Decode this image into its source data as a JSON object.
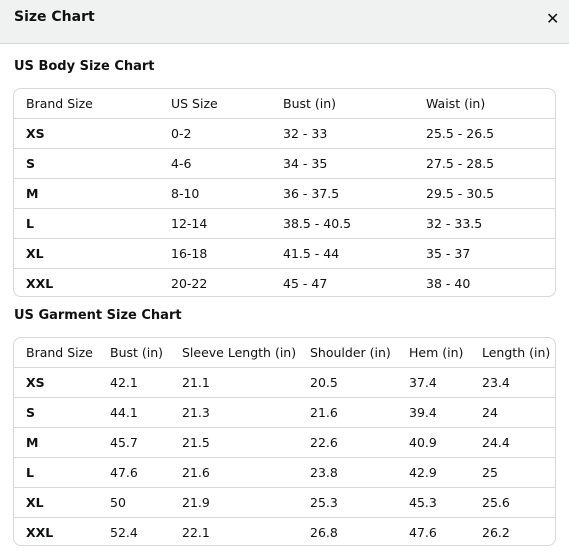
{
  "header": {
    "title": "Size Chart",
    "close": "✕"
  },
  "sections": [
    {
      "title": "US Body Size Chart",
      "columns": [
        "Brand Size",
        "US Size",
        "Bust (in)",
        "Waist (in)"
      ],
      "rows": [
        [
          "XS",
          "0-2",
          "32 - 33",
          "25.5 - 26.5"
        ],
        [
          "S",
          "4-6",
          "34 - 35",
          "27.5 - 28.5"
        ],
        [
          "M",
          "8-10",
          "36 - 37.5",
          "29.5 - 30.5"
        ],
        [
          "L",
          "12-14",
          "38.5 - 40.5",
          "32 - 33.5"
        ],
        [
          "XL",
          "16-18",
          "41.5 - 44",
          "35 - 37"
        ],
        [
          "XXL",
          "20-22",
          "45 - 47",
          "38 - 40"
        ]
      ]
    },
    {
      "title": "US Garment Size Chart",
      "columns": [
        "Brand Size",
        "Bust (in)",
        "Sleeve Length (in)",
        "Shoulder (in)",
        "Hem (in)",
        "Length (in)"
      ],
      "rows": [
        [
          "XS",
          "42.1",
          "21.1",
          "20.5",
          "37.4",
          "23.4"
        ],
        [
          "S",
          "44.1",
          "21.3",
          "21.6",
          "39.4",
          "24"
        ],
        [
          "M",
          "45.7",
          "21.5",
          "22.6",
          "40.9",
          "24.4"
        ],
        [
          "L",
          "47.6",
          "21.6",
          "23.8",
          "42.9",
          "25"
        ],
        [
          "XL",
          "50",
          "21.9",
          "25.3",
          "45.3",
          "25.6"
        ],
        [
          "XXL",
          "52.4",
          "22.1",
          "26.8",
          "47.6",
          "26.2"
        ]
      ]
    }
  ]
}
